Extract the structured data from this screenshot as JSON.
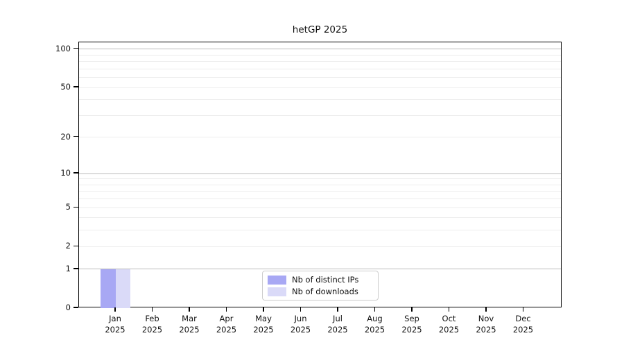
{
  "chart_data": {
    "type": "bar",
    "title": "hetGP 2025",
    "xlabel": "",
    "ylabel": "",
    "yscale": "log1p",
    "ylim": [
      0,
      113
    ],
    "grid": true,
    "legend_position": "lower center",
    "background": "#ffffff",
    "axis_color": "#000000",
    "yticks": [
      {
        "v": 0,
        "label": "0"
      },
      {
        "v": 1,
        "label": "1"
      },
      {
        "v": 2,
        "label": "2"
      },
      {
        "v": 5,
        "label": "5"
      },
      {
        "v": 10,
        "label": "10"
      },
      {
        "v": 20,
        "label": "20"
      },
      {
        "v": 50,
        "label": "50"
      },
      {
        "v": 100,
        "label": "100"
      }
    ],
    "gridlines": {
      "major_values": [
        1,
        10,
        100
      ],
      "minor_values": [
        2,
        3,
        4,
        5,
        6,
        7,
        8,
        9,
        20,
        30,
        40,
        50,
        60,
        70,
        80,
        90
      ],
      "major_color": "#bbbbbb",
      "minor_color": "#ededed"
    },
    "categories": [
      "Jan 2025",
      "Feb 2025",
      "Mar 2025",
      "Apr 2025",
      "May 2025",
      "Jun 2025",
      "Jul 2025",
      "Aug 2025",
      "Sep 2025",
      "Oct 2025",
      "Nov 2025",
      "Dec 2025"
    ],
    "x_tick_labels": [
      {
        "top": "Jan",
        "bottom": "2025"
      },
      {
        "top": "Feb",
        "bottom": "2025"
      },
      {
        "top": "Mar",
        "bottom": "2025"
      },
      {
        "top": "Apr",
        "bottom": "2025"
      },
      {
        "top": "May",
        "bottom": "2025"
      },
      {
        "top": "Jun",
        "bottom": "2025"
      },
      {
        "top": "Jul",
        "bottom": "2025"
      },
      {
        "top": "Aug",
        "bottom": "2025"
      },
      {
        "top": "Sep",
        "bottom": "2025"
      },
      {
        "top": "Oct",
        "bottom": "2025"
      },
      {
        "top": "Nov",
        "bottom": "2025"
      },
      {
        "top": "Dec",
        "bottom": "2025"
      }
    ],
    "series": [
      {
        "name": "Nb of distinct IPs",
        "color": "#a8a8f4",
        "values": [
          1,
          0,
          0,
          0,
          0,
          0,
          0,
          0,
          0,
          0,
          0,
          0
        ]
      },
      {
        "name": "Nb of downloads",
        "color": "#dadaf8",
        "values": [
          1,
          0,
          0,
          0,
          0,
          0,
          0,
          0,
          0,
          0,
          0,
          0
        ]
      }
    ]
  }
}
